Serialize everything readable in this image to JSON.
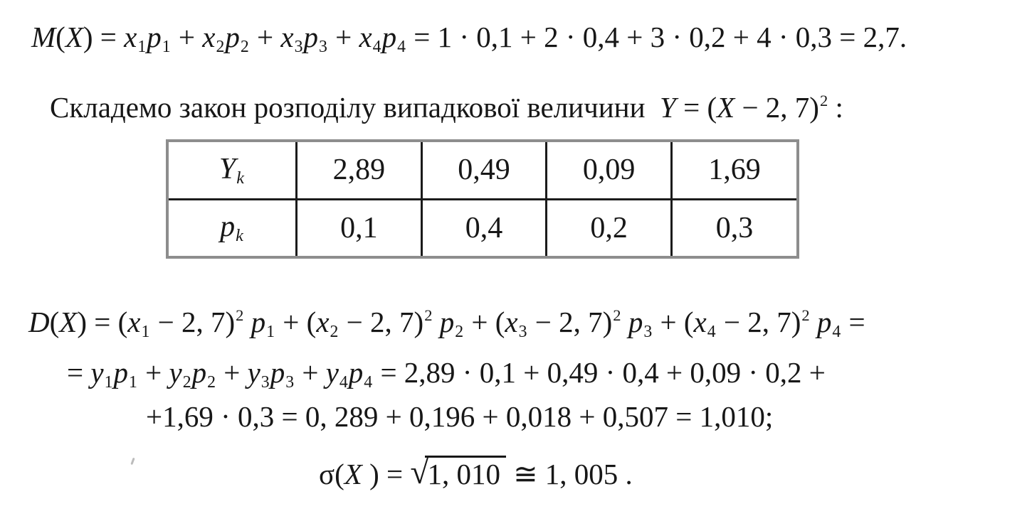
{
  "colors": {
    "paper": "#ffffff",
    "ink": "#171717",
    "table_inner_border": "#1b1b1b",
    "table_outer_border": "#8d8d8d"
  },
  "formulas": {
    "expected_value": {
      "plain": "M(X) = x1p1 + x2p2 + x3p3 + x4p4 = 1·0,1 + 2·0,4 + 3·0,2 + 4·0,3 = 2,7.",
      "tokens": [
        {
          "v": "M",
          "k": "i"
        },
        {
          "v": "(",
          "k": "n"
        },
        {
          "v": "X",
          "k": "i"
        },
        {
          "v": ") = ",
          "k": "n"
        },
        {
          "v": "x",
          "k": "i"
        },
        {
          "v": "1",
          "k": "sub"
        },
        {
          "v": "p",
          "k": "i"
        },
        {
          "v": "1",
          "k": "sub"
        },
        {
          "v": " + ",
          "k": "n"
        },
        {
          "v": "x",
          "k": "i"
        },
        {
          "v": "2",
          "k": "sub"
        },
        {
          "v": "p",
          "k": "i"
        },
        {
          "v": "2",
          "k": "sub"
        },
        {
          "v": " + ",
          "k": "n"
        },
        {
          "v": "x",
          "k": "i"
        },
        {
          "v": "3",
          "k": "sub"
        },
        {
          "v": "p",
          "k": "i"
        },
        {
          "v": "3",
          "k": "sub"
        },
        {
          "v": " + ",
          "k": "n"
        },
        {
          "v": "x",
          "k": "i"
        },
        {
          "v": "4",
          "k": "sub"
        },
        {
          "v": "p",
          "k": "i"
        },
        {
          "v": "4",
          "k": "sub"
        },
        {
          "v": " = 1 · 0,1 + 2 · 0,4 + 3 · 0,2 + 4 · 0,3 = 2,7.",
          "k": "n"
        }
      ]
    },
    "intro": {
      "plain": "Складемо закон розподілу випадкової величини Y = (X − 2, 7)² :",
      "tokens": [
        {
          "v": "Складемо закон розподілу випадкової величини  ",
          "k": "n"
        },
        {
          "v": "Y",
          "k": "i"
        },
        {
          "v": " = (",
          "k": "n"
        },
        {
          "v": "X",
          "k": "i"
        },
        {
          "v": " − 2, 7)",
          "k": "n"
        },
        {
          "v": "2",
          "k": "sup"
        },
        {
          "v": " :",
          "k": "n"
        }
      ]
    },
    "variance_line1": {
      "plain": "D(X) = (x1 − 2,7)² p1 + (x2 − 2,7)² p2 + (x3 − 2,7)² p3 + (x4 − 2,7)² p4 =",
      "tokens": [
        {
          "v": "D",
          "k": "i"
        },
        {
          "v": "(",
          "k": "n"
        },
        {
          "v": "X",
          "k": "i"
        },
        {
          "v": ") = (",
          "k": "n"
        },
        {
          "v": "x",
          "k": "i"
        },
        {
          "v": "1",
          "k": "sub"
        },
        {
          "v": " − 2, 7)",
          "k": "n"
        },
        {
          "v": "2",
          "k": "sup"
        },
        {
          "v": " ",
          "k": "n"
        },
        {
          "v": "p",
          "k": "i"
        },
        {
          "v": "1",
          "k": "sub"
        },
        {
          "v": " + (",
          "k": "n"
        },
        {
          "v": "x",
          "k": "i"
        },
        {
          "v": "2",
          "k": "sub"
        },
        {
          "v": " − 2, 7)",
          "k": "n"
        },
        {
          "v": "2",
          "k": "sup"
        },
        {
          "v": " ",
          "k": "n"
        },
        {
          "v": "p",
          "k": "i"
        },
        {
          "v": "2",
          "k": "sub"
        },
        {
          "v": " + (",
          "k": "n"
        },
        {
          "v": "x",
          "k": "i"
        },
        {
          "v": "3",
          "k": "sub"
        },
        {
          "v": " − 2, 7)",
          "k": "n"
        },
        {
          "v": "2",
          "k": "sup"
        },
        {
          "v": " ",
          "k": "n"
        },
        {
          "v": "p",
          "k": "i"
        },
        {
          "v": "3",
          "k": "sub"
        },
        {
          "v": " + (",
          "k": "n"
        },
        {
          "v": "x",
          "k": "i"
        },
        {
          "v": "4",
          "k": "sub"
        },
        {
          "v": " − 2, 7)",
          "k": "n"
        },
        {
          "v": "2",
          "k": "sup"
        },
        {
          "v": " ",
          "k": "n"
        },
        {
          "v": "p",
          "k": "i"
        },
        {
          "v": "4",
          "k": "sub"
        },
        {
          "v": " =",
          "k": "n"
        }
      ]
    },
    "variance_line2": {
      "plain": "= y1p1 + y2p2 + y3p3 + y4p4 = 2,89·0,1 + 0,49·0,4 + 0,09·0,2 +",
      "tokens": [
        {
          "v": "= ",
          "k": "n"
        },
        {
          "v": "y",
          "k": "i"
        },
        {
          "v": "1",
          "k": "sub"
        },
        {
          "v": "p",
          "k": "i"
        },
        {
          "v": "1",
          "k": "sub"
        },
        {
          "v": " + ",
          "k": "n"
        },
        {
          "v": "y",
          "k": "i"
        },
        {
          "v": "2",
          "k": "sub"
        },
        {
          "v": "p",
          "k": "i"
        },
        {
          "v": "2",
          "k": "sub"
        },
        {
          "v": " + ",
          "k": "n"
        },
        {
          "v": "y",
          "k": "i"
        },
        {
          "v": "3",
          "k": "sub"
        },
        {
          "v": "p",
          "k": "i"
        },
        {
          "v": "3",
          "k": "sub"
        },
        {
          "v": " + ",
          "k": "n"
        },
        {
          "v": "y",
          "k": "i"
        },
        {
          "v": "4",
          "k": "sub"
        },
        {
          "v": "p",
          "k": "i"
        },
        {
          "v": "4",
          "k": "sub"
        },
        {
          "v": " = 2,89 · 0,1 + 0,49 · 0,4 + 0,09 · 0,2 +",
          "k": "n"
        }
      ]
    },
    "variance_line3": {
      "plain": "+1,69·0,3 = 0,289 + 0,196 + 0,018 + 0,507 = 1,010;",
      "tokens": [
        {
          "v": "+1,69 · 0,3 = 0, 289 + 0,196 + 0,018 + 0,507 = 1,010;",
          "k": "n"
        }
      ]
    },
    "sigma": {
      "plain": "σ(X) = √1,010 ≅ 1,005.",
      "tokens": [
        {
          "v": "σ",
          "k": "n"
        },
        {
          "v": "(",
          "k": "n"
        },
        {
          "v": "X",
          "k": "i"
        },
        {
          "v": " ) = ",
          "k": "n"
        },
        {
          "v": "√",
          "k": "radical"
        },
        {
          "v": "1, 010",
          "k": "rad"
        },
        {
          "v": " ≅ 1, 005 .",
          "k": "n"
        }
      ]
    }
  },
  "table": {
    "rows": [
      {
        "label_plain": "Yk",
        "label_tokens": [
          {
            "v": "Y",
            "k": "i"
          },
          {
            "v": "k",
            "k": "isub"
          }
        ],
        "values": [
          "2,89",
          "0,49",
          "0,09",
          "1,69"
        ]
      },
      {
        "label_plain": "pk",
        "label_tokens": [
          {
            "v": "p",
            "k": "i"
          },
          {
            "v": "k",
            "k": "isub"
          }
        ],
        "values": [
          "0,1",
          "0,4",
          "0,2",
          "0,3"
        ]
      }
    ]
  }
}
